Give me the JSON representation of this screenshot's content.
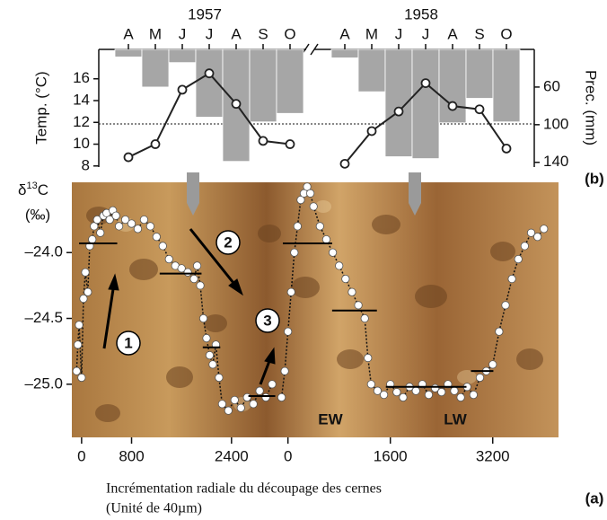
{
  "chart_data": [
    {
      "type": "bar-line",
      "panel_label": "(b)",
      "ylabel": "Temp. (°C)",
      "y2label": "Prec. (mm)",
      "ylim": [
        7.9,
        18.7
      ],
      "yticks": [
        8,
        10,
        12,
        14,
        16
      ],
      "y2lim": [
        20,
        145
      ],
      "y2ticks": [
        60,
        100,
        140
      ],
      "bar_color": "#a6a6a6",
      "line_color": "#222222",
      "years": [
        {
          "title": "1957",
          "categories": [
            "A",
            "M",
            "J",
            "J",
            "A",
            "S",
            "O"
          ],
          "temperature": [
            8.8,
            10,
            15,
            16.5,
            13.7,
            10.3,
            10
          ],
          "precipitation": [
            28,
            60,
            34,
            92,
            139,
            97,
            88
          ]
        },
        {
          "title": "1958",
          "categories": [
            "A",
            "M",
            "J",
            "J",
            "A",
            "S",
            "O"
          ],
          "temperature": [
            8.2,
            11.2,
            13,
            15.6,
            13.5,
            13.2,
            9.6
          ],
          "precipitation": [
            29,
            65,
            134,
            136,
            98,
            72,
            97
          ]
        }
      ]
    },
    {
      "type": "scatter",
      "panel_label": "(a)",
      "ylabel": [
        "δ",
        "13",
        "C"
      ],
      "yunit": "(‰)",
      "xlabel": [
        "Incrémentation radiale du découpage des cernes",
        "(Unité de 40µm)"
      ],
      "ylim": [
        -25.39,
        -23.48
      ],
      "yticks": [
        {
          "value": -24,
          "label": "–24.0"
        },
        {
          "value": -24.5,
          "label": "–24.5"
        },
        {
          "value": -25,
          "label": "–25.0"
        }
      ],
      "annotations": [
        "1",
        "2",
        "3",
        "EW",
        "LW"
      ],
      "segments": [
        {
          "xlim": [
            -300,
            3150
          ],
          "xticks": [
            0,
            800,
            2400
          ],
          "x": [
            -80,
            -60,
            -40,
            0,
            30,
            60,
            100,
            130,
            170,
            200,
            250,
            300,
            350,
            400,
            450,
            500,
            550,
            600,
            700,
            800,
            900,
            1000,
            1100,
            1200,
            1300,
            1400,
            1500,
            1600,
            1700,
            1800,
            1850,
            1900,
            1950,
            2000,
            2050,
            2100,
            2150,
            2200,
            2250,
            2350,
            2450,
            2550,
            2650,
            2750,
            2850,
            2950,
            3050
          ],
          "y": [
            -24.9,
            -24.7,
            -24.55,
            -24.95,
            -24.35,
            -24.15,
            -24.3,
            -23.95,
            -23.9,
            -23.8,
            -23.75,
            -23.85,
            -23.72,
            -23.7,
            -23.75,
            -23.68,
            -23.72,
            -23.8,
            -23.75,
            -23.78,
            -23.82,
            -23.75,
            -23.8,
            -23.88,
            -23.95,
            -24.05,
            -24.1,
            -24.12,
            -24.15,
            -24.2,
            -24.1,
            -24.25,
            -24.5,
            -24.65,
            -24.78,
            -24.85,
            -24.7,
            -24.95,
            -25.15,
            -25.2,
            -25.12,
            -25.18,
            -25.1,
            -25.15,
            -25.05,
            -25.1,
            -25.0
          ],
          "means": [
            {
              "x0": -40,
              "x1": 570,
              "y": -23.93
            },
            {
              "x0": 1250,
              "x1": 1920,
              "y": -24.16
            },
            {
              "x0": 1940,
              "x1": 2220,
              "y": -24.72
            },
            {
              "x0": 2670,
              "x1": 3100,
              "y": -25.09
            }
          ]
        },
        {
          "xlim": [
            -150,
            4200
          ],
          "xticks": [
            0,
            1600,
            3200
          ],
          "x": [
            -100,
            -50,
            0,
            50,
            100,
            150,
            200,
            250,
            300,
            350,
            400,
            500,
            600,
            700,
            800,
            900,
            1000,
            1100,
            1200,
            1250,
            1300,
            1400,
            1500,
            1600,
            1700,
            1800,
            1900,
            2000,
            2100,
            2200,
            2300,
            2400,
            2500,
            2600,
            2700,
            2800,
            2900,
            3000,
            3100,
            3200,
            3300,
            3400,
            3500,
            3600,
            3700,
            3800,
            3900,
            4000
          ],
          "y": [
            -25.1,
            -24.9,
            -24.6,
            -24.3,
            -24.0,
            -23.8,
            -23.6,
            -23.55,
            -23.5,
            -23.55,
            -23.65,
            -23.8,
            -23.9,
            -24.0,
            -24.1,
            -24.2,
            -24.3,
            -24.4,
            -24.5,
            -24.8,
            -25.0,
            -25.05,
            -25.08,
            -25.0,
            -25.06,
            -25.1,
            -25.02,
            -25.05,
            -25.0,
            -25.08,
            -25.03,
            -25.06,
            -25.0,
            -25.05,
            -25.1,
            -25.02,
            -25.08,
            -24.95,
            -24.9,
            -24.85,
            -24.6,
            -24.4,
            -24.2,
            -24.05,
            -23.95,
            -23.85,
            -23.88,
            -23.82
          ],
          "means": [
            {
              "x0": -80,
              "x1": 690,
              "y": -23.93
            },
            {
              "x0": 690,
              "x1": 1390,
              "y": -24.44
            },
            {
              "x0": 1530,
              "x1": 2790,
              "y": -25.02
            },
            {
              "x0": 2860,
              "x1": 3210,
              "y": -24.9
            }
          ]
        }
      ]
    }
  ]
}
